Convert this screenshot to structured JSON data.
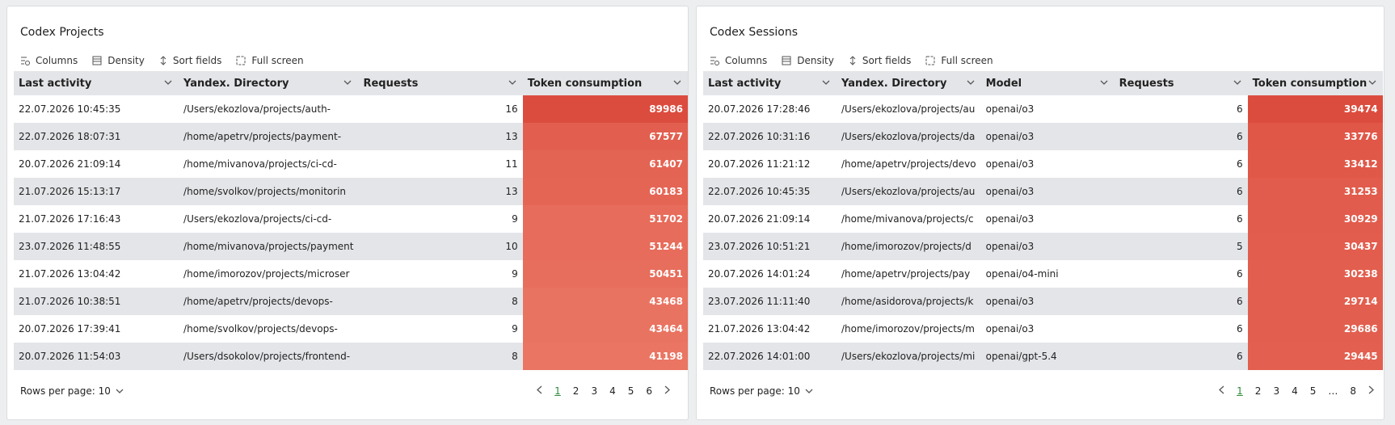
{
  "panels": [
    {
      "title": "Codex Projects",
      "toolbar": [
        "Columns",
        "Density",
        "Sort fields",
        "Full screen"
      ],
      "columns": [
        "Last activity",
        "Yandex. Directory",
        "Requests",
        "Token consumption"
      ],
      "rows": [
        [
          "22.07.2026 10:45:35",
          "/Users/ekozlova/projects/auth-",
          16,
          89986
        ],
        [
          "22.07.2026 18:07:31",
          "/home/apetrv/projects/payment-",
          13,
          67577
        ],
        [
          "20.07.2026 21:09:14",
          "/home/mivanova/projects/ci-cd-",
          11,
          61407
        ],
        [
          "21.07.2026 15:13:17",
          "/home/svolkov/projects/monitorin",
          13,
          60183
        ],
        [
          "21.07.2026 17:16:43",
          "/Users/ekozlova/projects/ci-cd-",
          9,
          51702
        ],
        [
          "23.07.2026 11:48:55",
          "/home/mivanova/projects/payment",
          10,
          51244
        ],
        [
          "21.07.2026 13:04:42",
          "/home/imorozov/projects/microser",
          9,
          50451
        ],
        [
          "21.07.2026 10:38:51",
          "/home/apetrv/projects/devops-",
          8,
          43468
        ],
        [
          "20.07.2026 17:39:41",
          "/home/svolkov/projects/devops-",
          9,
          43464
        ],
        [
          "20.07.2026 11:54:03",
          "/Users/dsokolov/projects/frontend-",
          8,
          41198
        ]
      ],
      "rows_per_page": "Rows per page: 10",
      "pages": [
        "1",
        "2",
        "3",
        "4",
        "5",
        "6"
      ]
    },
    {
      "title": "Codex Sessions",
      "toolbar": [
        "Columns",
        "Density",
        "Sort fields",
        "Full screen"
      ],
      "columns": [
        "Last activity",
        "Yandex. Directory",
        "Model",
        "Requests",
        "Token consumption"
      ],
      "rows": [
        [
          "20.07.2026 17:28:46",
          "/Users/ekozlova/projects/au",
          "openai/o3",
          6,
          39474
        ],
        [
          "22.07.2026 10:31:16",
          "/Users/ekozlova/projects/da",
          "openai/o3",
          6,
          33776
        ],
        [
          "20.07.2026 11:21:12",
          "/home/apetrv/projects/devo",
          "openai/o3",
          6,
          33412
        ],
        [
          "22.07.2026 10:45:35",
          "/Users/ekozlova/projects/au",
          "openai/o3",
          6,
          31253
        ],
        [
          "20.07.2026 21:09:14",
          "/home/mivanova/projects/c",
          "openai/o3",
          6,
          30929
        ],
        [
          "23.07.2026 10:51:21",
          "/home/imorozov/projects/d",
          "openai/o3",
          5,
          30437
        ],
        [
          "20.07.2026 14:01:24",
          "/home/apetrv/projects/pay",
          "openai/o4-mini",
          6,
          30238
        ],
        [
          "23.07.2026 11:11:40",
          "/home/asidorova/projects/k",
          "openai/o3",
          6,
          29714
        ],
        [
          "21.07.2026 13:04:42",
          "/home/imorozov/projects/m",
          "openai/o3",
          6,
          29686
        ],
        [
          "22.07.2026 14:01:00",
          "/Users/ekozlova/projects/mi",
          "openai/gpt-5.4",
          6,
          29445
        ]
      ],
      "rows_per_page": "Rows per page: 10",
      "pages": [
        "1",
        "2",
        "3",
        "4",
        "5",
        "…",
        "8"
      ]
    }
  ]
}
